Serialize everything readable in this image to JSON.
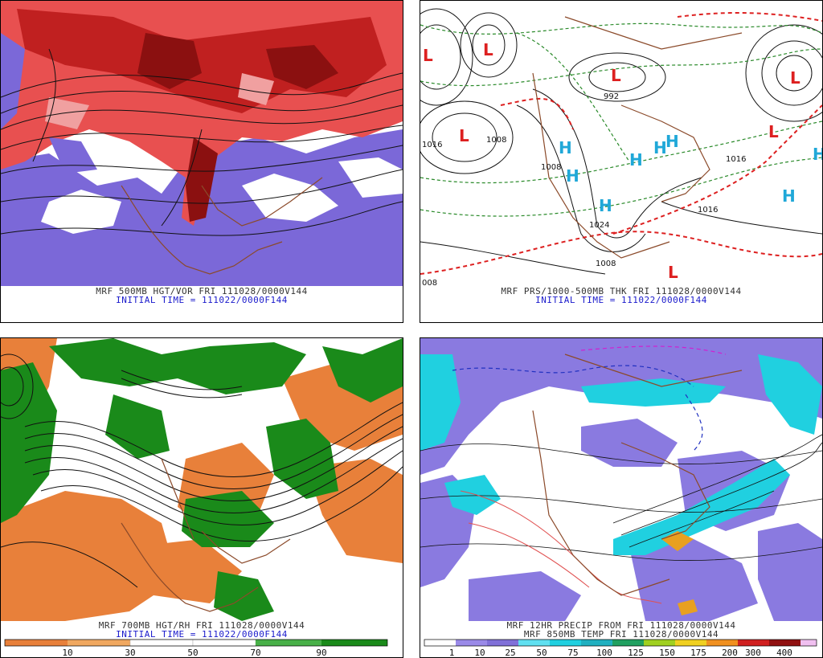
{
  "panels": [
    {
      "id": "p1",
      "title": "MRF 500MB HGT/VOR FRI 111028/0000V144",
      "subtitle": "INITIAL TIME = 111022/0000F144"
    },
    {
      "id": "p2",
      "title": "MRF PRS/1000-500MB THK FRI 111028/0000V144",
      "subtitle": "INITIAL TIME = 111022/0000F144",
      "labels": {
        "L": "L",
        "H": "H",
        "v1": "992",
        "v2": "1016",
        "v3": "1008",
        "v4": "1008",
        "v5": "1016",
        "v6": "1008",
        "v7": "008",
        "v8": "1024",
        "v9": "1016"
      }
    },
    {
      "id": "p3",
      "title": "MRF 700MB HGT/RH FRI 111028/0000V144",
      "subtitle": "INITIAL TIME = 111022/0000F144",
      "legend": [
        "10",
        "30",
        "50",
        "70",
        "90"
      ]
    },
    {
      "id": "p4",
      "title": "MRF 12HR PRECIP FROM FRI 111028/0000V144",
      "subtitle": "MRF 850MB TEMP FRI 111028/0000V144",
      "legend": [
        "1",
        "10",
        "25",
        "50",
        "75",
        "100",
        "125",
        "150",
        "175",
        "200",
        "300",
        "400"
      ]
    }
  ],
  "colors": {
    "vor_red": "#e03030",
    "vor_dark": "#8b1010",
    "vor_purple": "#7b68d8",
    "rh_green": "#1a8a1a",
    "rh_orange": "#e8803a",
    "precip_cyan": "#20d0e0",
    "precip_purple": "#8a7ae0",
    "coast": "#8b4a2a",
    "isobar_green": "#2a8a2a",
    "thk_red": "#dd2020",
    "h_blue": "#20a8d8"
  }
}
